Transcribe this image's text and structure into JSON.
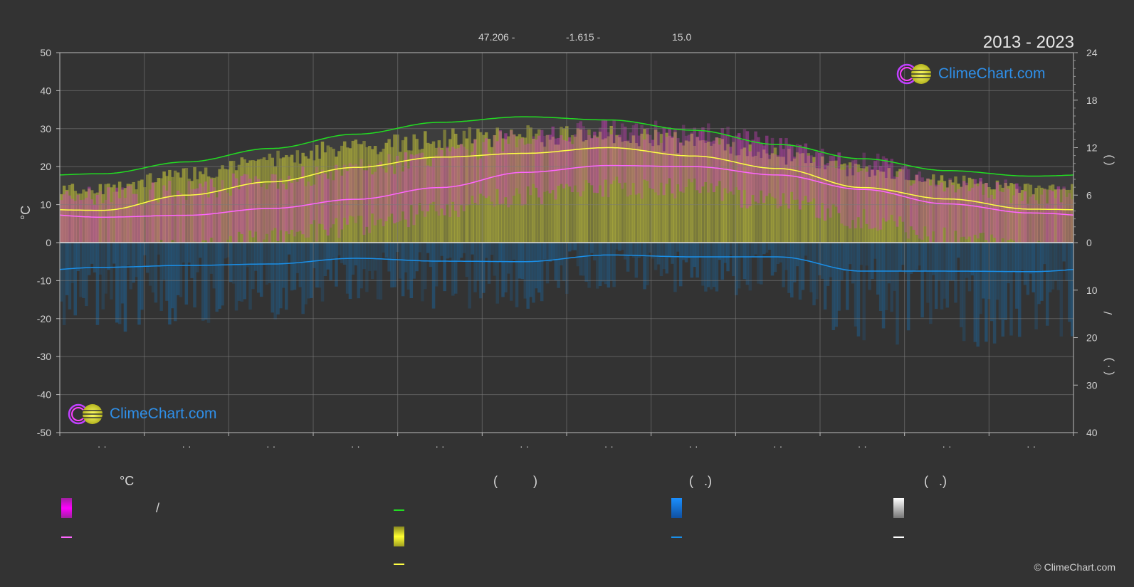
{
  "header": {
    "latitude": "47.206 -",
    "longitude": "-1.615 -",
    "elevation": "15.0",
    "period": "2013 - 2023"
  },
  "logo": {
    "text": "ClimeChart.com"
  },
  "copyright": "© ClimeChart.com",
  "legend": {
    "col1_title": "°C",
    "col2_title": "(          )",
    "col3_title": "(   .)",
    "col4_title": "(   .)",
    "slash": "/",
    "colors": {
      "temp_range": "#ff33ff",
      "temp_mean": "#ff66ff",
      "daylight": "#22dd22",
      "sunshine": "#e8e84a",
      "sunshine_mean": "#ffff44",
      "precip": "#1a7fd6",
      "precip_mean": "#1a8fe8",
      "snow": "#ffffff",
      "snow_mean": "#ffffff"
    }
  },
  "chart_data": {
    "type": "area",
    "left_axis": {
      "label": "°C",
      "ticks": [
        50,
        40,
        30,
        20,
        10,
        0,
        -10,
        -20,
        -30,
        -40,
        -50
      ],
      "range": [
        -50,
        50
      ]
    },
    "right_axis_top": {
      "ticks": [
        24,
        18,
        12,
        6,
        0
      ],
      "range": [
        0,
        24
      ]
    },
    "right_axis_bottom": {
      "ticks": [
        0,
        10,
        20,
        30,
        40
      ],
      "range": [
        0,
        40
      ]
    },
    "right_axis_labels": [
      "(   )",
      "/",
      "(   ·   )"
    ],
    "x_tick_labels": [
      "· ·",
      "· ·",
      "· ·",
      "· ·",
      "· ·",
      "· ·",
      "· ·",
      "· ·",
      "· ·",
      "· ·",
      "· ·",
      "· ·"
    ],
    "months": 12,
    "grid": true,
    "series": [
      {
        "id": "daylight_hours",
        "color": "#22dd22",
        "values": [
          8.7,
          10.2,
          11.9,
          13.7,
          15.2,
          15.9,
          15.5,
          14.2,
          12.4,
          10.6,
          9.1,
          8.4
        ]
      },
      {
        "id": "sunshine_mean_c",
        "color": "#ffff44",
        "values": [
          8.5,
          12.5,
          16.0,
          19.8,
          22.5,
          23.5,
          25.0,
          22.8,
          19.5,
          14.5,
          11.5,
          8.8
        ]
      },
      {
        "id": "temp_mean_c",
        "color": "#ff66ff",
        "values": [
          6.7,
          7.2,
          9.0,
          11.4,
          14.5,
          18.5,
          20.3,
          20.0,
          17.8,
          14.0,
          10.2,
          7.8
        ]
      },
      {
        "id": "precip_mean_mm",
        "color": "#1a8fe8",
        "values": [
          5.2,
          4.8,
          4.5,
          3.3,
          3.9,
          4.0,
          2.6,
          3.0,
          3.0,
          6.0,
          6.0,
          6.1
        ]
      },
      {
        "id": "sunshine_band_top_c",
        "color": "#e8e84a",
        "values": [
          15.0,
          19.0,
          23.0,
          27.0,
          29.0,
          29.5,
          30.0,
          27.5,
          24.0,
          20.0,
          17.0,
          15.0
        ]
      },
      {
        "id": "temp_band_top_c",
        "color": "#ff33ff",
        "values": [
          12.0,
          13.5,
          16.5,
          19.5,
          23.0,
          27.5,
          29.5,
          29.0,
          26.0,
          21.0,
          16.0,
          13.0
        ]
      }
    ]
  }
}
